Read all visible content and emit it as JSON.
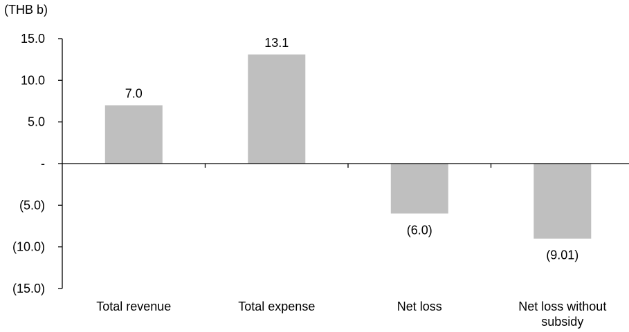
{
  "chart_data": {
    "type": "bar",
    "unit_label": "(THB b)",
    "categories": [
      "Total  revenue",
      "Total expense",
      "Net loss",
      "Net loss without\nsubsidy"
    ],
    "values": [
      7.0,
      13.1,
      -6.0,
      -9.01
    ],
    "data_labels": [
      "7.0",
      "13.1",
      "(6.0)",
      "(9.01)"
    ],
    "ylim": [
      -15,
      15
    ],
    "yticks": [
      15,
      10,
      5,
      0,
      -5,
      -10,
      -15
    ],
    "ytick_labels": [
      "15.0",
      "10.0",
      "5.0",
      "-",
      "(5.0)",
      "(10.0)",
      "(15.0)"
    ],
    "bar_color": "#bfbfbf",
    "grid": false,
    "legend": "none"
  }
}
